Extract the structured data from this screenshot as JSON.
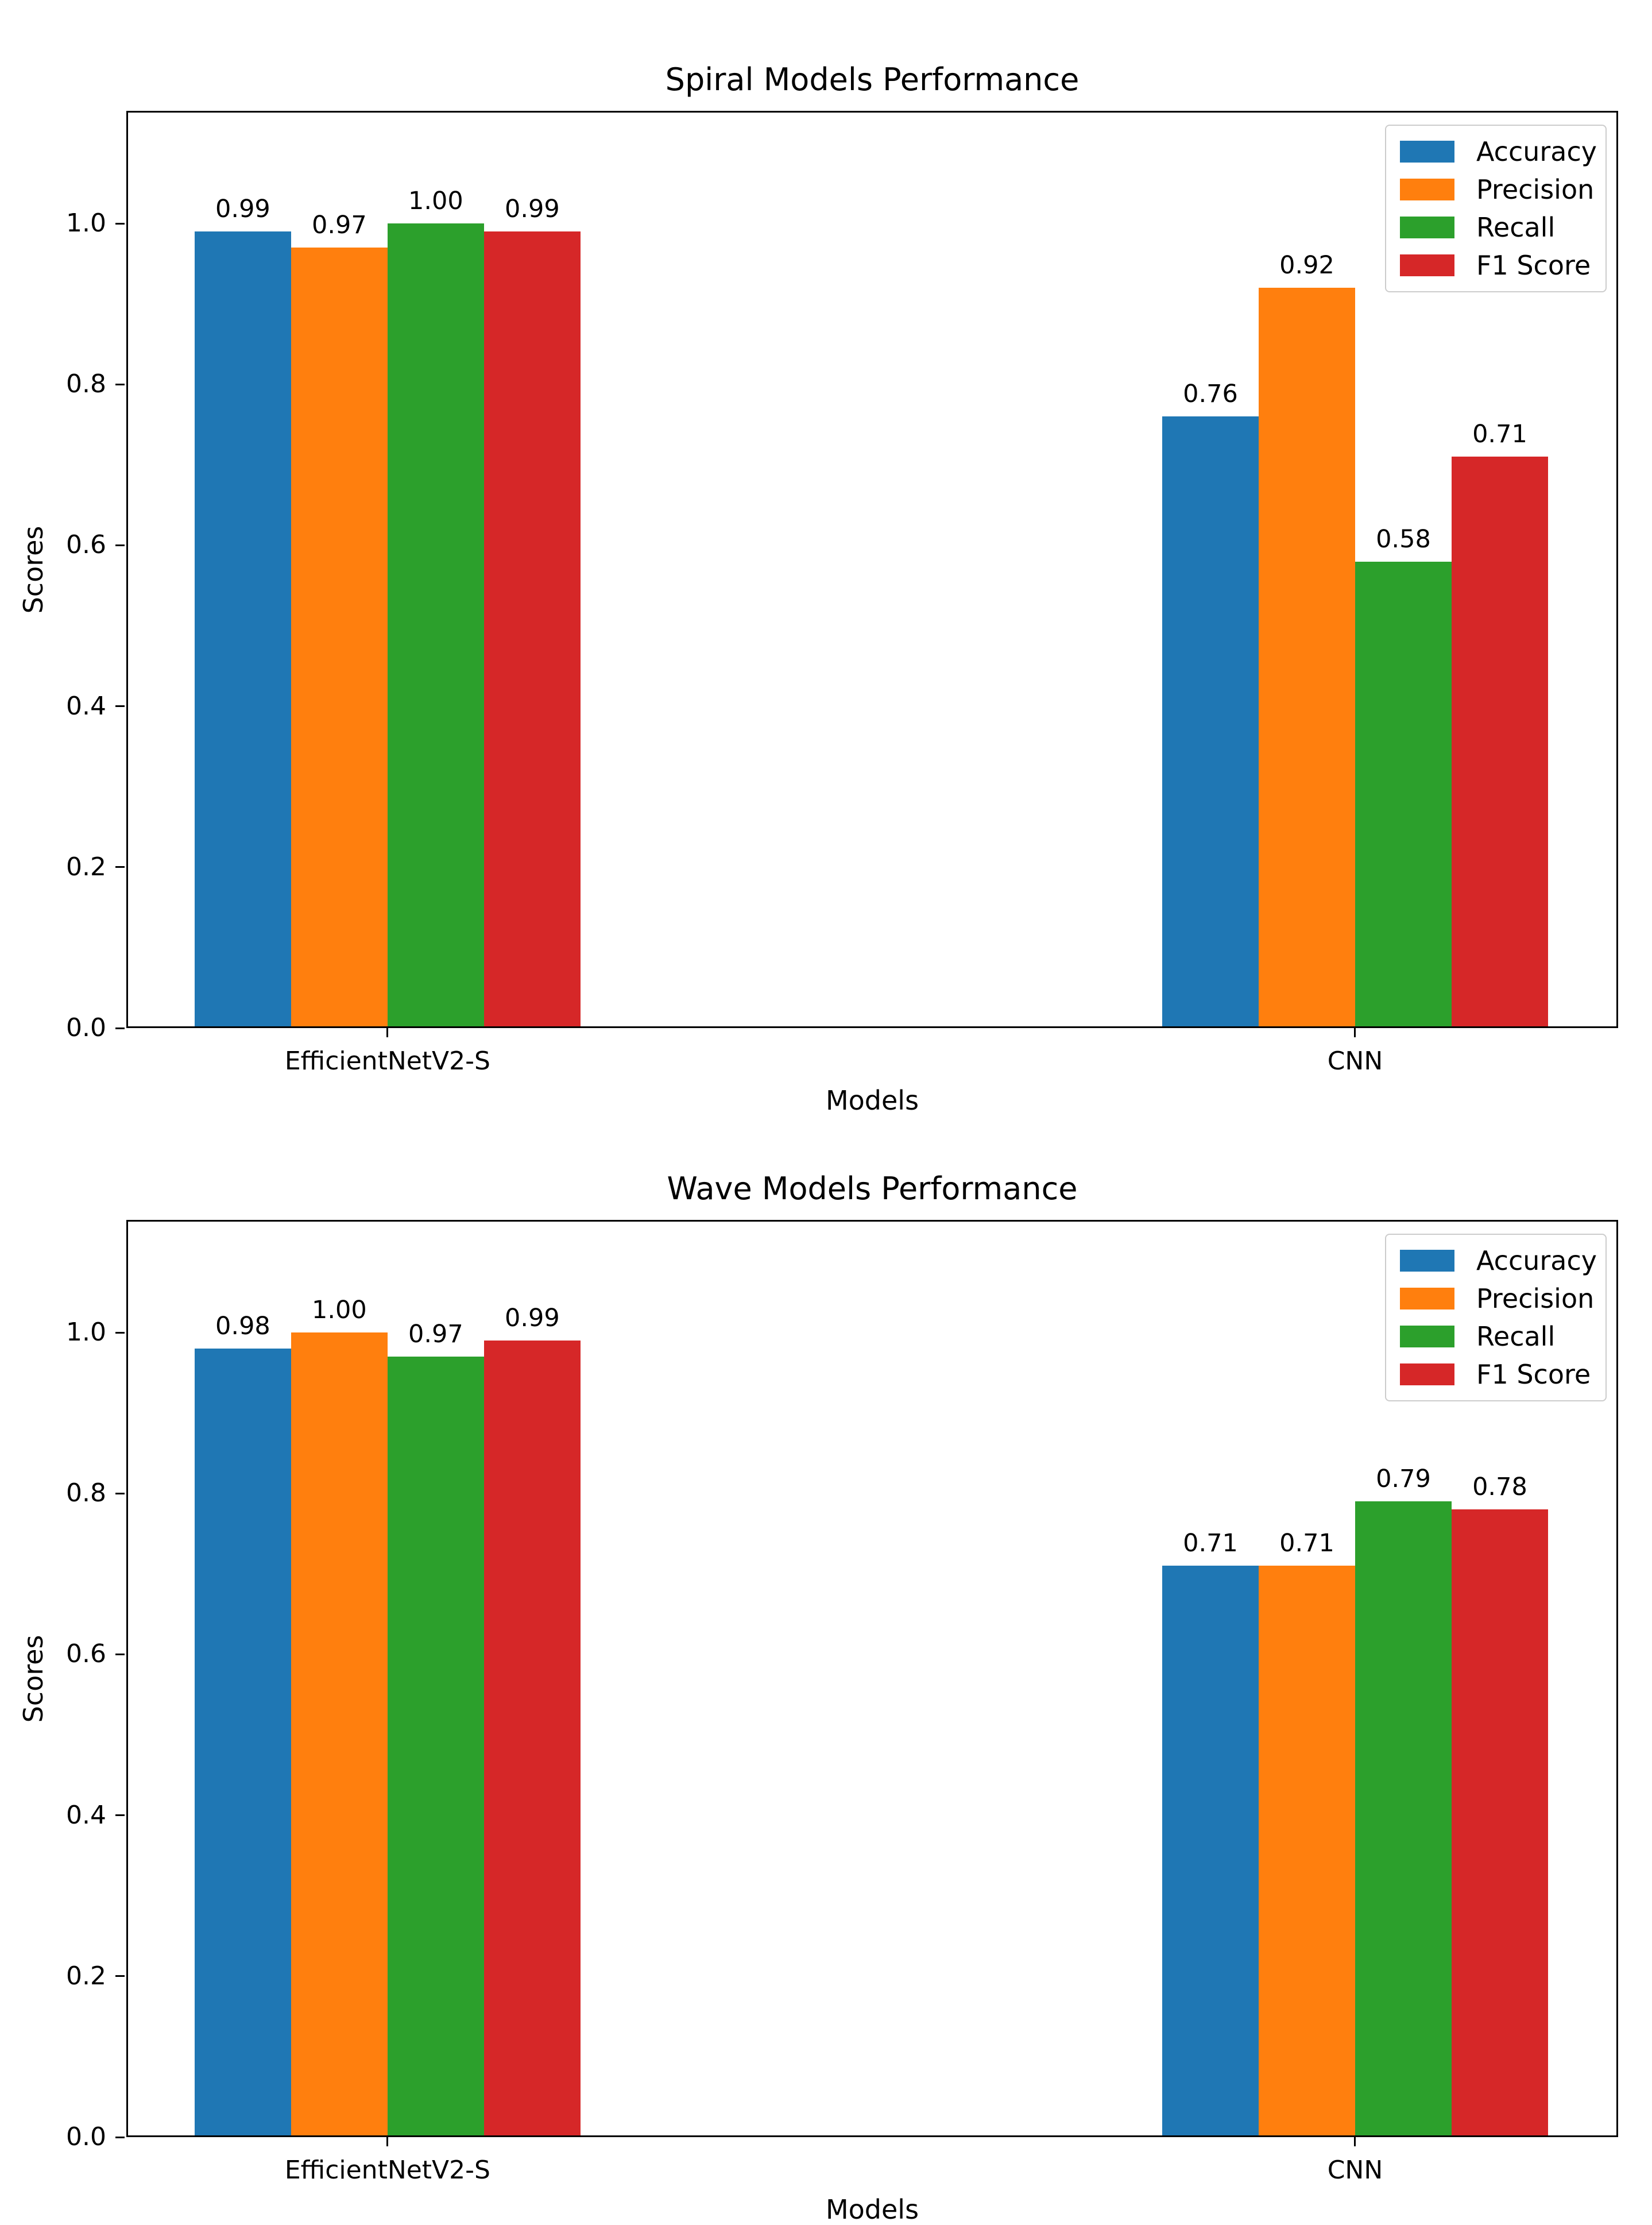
{
  "figure": {
    "background": "#ffffff",
    "text_color": "#000000"
  },
  "chart_data": [
    {
      "type": "bar",
      "title": "Spiral Models Performance",
      "xlabel": "Models",
      "ylabel": "Scores",
      "categories": [
        "EfficientNetV2-S",
        "CNN"
      ],
      "y_ticks": [
        "0.0",
        "0.2",
        "0.4",
        "0.6",
        "0.8",
        "1.0"
      ],
      "ylim": [
        0,
        1.14
      ],
      "grid": false,
      "legend_loc": "upper right",
      "series": [
        {
          "name": "Accuracy",
          "color": "#1f77b4",
          "values": [
            0.99,
            0.76
          ],
          "labels": [
            "0.99",
            "0.76"
          ]
        },
        {
          "name": "Precision",
          "color": "#ff7f0e",
          "values": [
            0.97,
            0.92
          ],
          "labels": [
            "0.97",
            "0.92"
          ]
        },
        {
          "name": "Recall",
          "color": "#2ca02c",
          "values": [
            1.0,
            0.58
          ],
          "labels": [
            "1.00",
            "0.58"
          ]
        },
        {
          "name": "F1 Score",
          "color": "#d62728",
          "values": [
            0.99,
            0.71
          ],
          "labels": [
            "0.99",
            "0.71"
          ]
        }
      ]
    },
    {
      "type": "bar",
      "title": "Wave Models Performance",
      "xlabel": "Models",
      "ylabel": "Scores",
      "categories": [
        "EfficientNetV2-S",
        "CNN"
      ],
      "y_ticks": [
        "0.0",
        "0.2",
        "0.4",
        "0.6",
        "0.8",
        "1.0"
      ],
      "ylim": [
        0,
        1.14
      ],
      "grid": false,
      "legend_loc": "upper right",
      "series": [
        {
          "name": "Accuracy",
          "color": "#1f77b4",
          "values": [
            0.98,
            0.71
          ],
          "labels": [
            "0.98",
            "0.71"
          ]
        },
        {
          "name": "Precision",
          "color": "#ff7f0e",
          "values": [
            1.0,
            0.71
          ],
          "labels": [
            "1.00",
            "0.71"
          ]
        },
        {
          "name": "Recall",
          "color": "#2ca02c",
          "values": [
            0.97,
            0.79
          ],
          "labels": [
            "0.97",
            "0.79"
          ]
        },
        {
          "name": "F1 Score",
          "color": "#d62728",
          "values": [
            0.99,
            0.78
          ],
          "labels": [
            "0.99",
            "0.78"
          ]
        }
      ]
    }
  ]
}
